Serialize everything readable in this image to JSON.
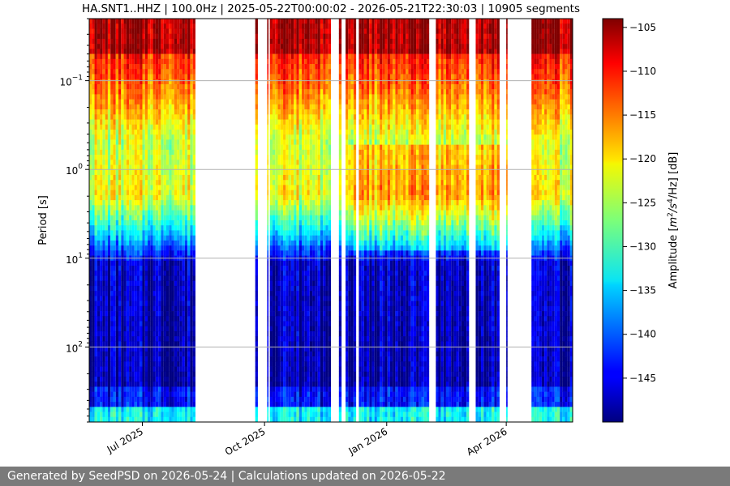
{
  "chart_data": {
    "type": "heatmap",
    "title": "HA.SNT1..HHZ | 100.0Hz | 2025-05-22T00:00:02 - 2026-05-21T22:30:03 | 10905 segments",
    "ylabel": "Period [s]",
    "colorbar_label": "Amplitude [m²/s⁴/Hz] [dB]",
    "colorbar_label_parts": {
      "prefix": "Amplitude [",
      "m": "m",
      "exp2": "2",
      "s": "/s",
      "exp4": "4",
      "hz": "/Hz] [dB]"
    },
    "colormap": "jet",
    "x_range": [
      "2025-05-22",
      "2026-05-21"
    ],
    "x_ticks": [
      {
        "label": "Jul 2025",
        "date": "2025-07-01"
      },
      {
        "label": "Oct 2025",
        "date": "2025-10-01"
      },
      {
        "label": "Jan 2026",
        "date": "2026-01-01"
      },
      {
        "label": "Apr 2026",
        "date": "2026-04-01"
      }
    ],
    "y_scale": "log",
    "y_inverted": true,
    "y_range_seconds": [
      0.02,
      700
    ],
    "y_ticks": [
      {
        "base": "10",
        "exp": "−1",
        "value": 0.1
      },
      {
        "base": "10",
        "exp": "0",
        "value": 1
      },
      {
        "base": "10",
        "exp": "1",
        "value": 10
      },
      {
        "base": "10",
        "exp": "2",
        "value": 100
      }
    ],
    "clim": [
      -150,
      -104
    ],
    "colorbar_ticks": [
      "−105",
      "−110",
      "−115",
      "−120",
      "−125",
      "−130",
      "−135",
      "−140",
      "−145"
    ],
    "colorbar_tick_values": [
      -105,
      -110,
      -115,
      -120,
      -125,
      -130,
      -135,
      -140,
      -145
    ],
    "data_periods": [
      [
        "2025-05-22",
        "2025-08-10"
      ],
      [
        "2025-09-24",
        "2025-09-26"
      ],
      [
        "2025-10-03",
        "2025-10-04"
      ],
      [
        "2025-10-05",
        "2025-11-20"
      ],
      [
        "2025-11-26",
        "2025-11-28"
      ],
      [
        "2025-12-01",
        "2025-12-09"
      ],
      [
        "2025-12-11",
        "2026-02-02"
      ],
      [
        "2026-02-07",
        "2026-03-04"
      ],
      [
        "2026-03-09",
        "2026-03-27"
      ],
      [
        "2026-04-01",
        "2026-04-02"
      ],
      [
        "2026-04-20",
        "2026-05-21"
      ]
    ],
    "grid": true
  },
  "footer": {
    "text": "Generated by SeedPSD on 2026-05-24 | Calculations updated on 2026-05-22"
  }
}
